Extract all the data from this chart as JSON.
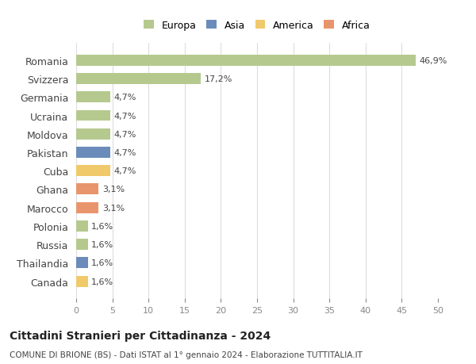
{
  "countries": [
    "Romania",
    "Svizzera",
    "Germania",
    "Ucraina",
    "Moldova",
    "Pakistan",
    "Cuba",
    "Ghana",
    "Marocco",
    "Polonia",
    "Russia",
    "Thailandia",
    "Canada"
  ],
  "values": [
    46.9,
    17.2,
    4.7,
    4.7,
    4.7,
    4.7,
    4.7,
    3.1,
    3.1,
    1.6,
    1.6,
    1.6,
    1.6
  ],
  "labels": [
    "46,9%",
    "17,2%",
    "4,7%",
    "4,7%",
    "4,7%",
    "4,7%",
    "4,7%",
    "3,1%",
    "3,1%",
    "1,6%",
    "1,6%",
    "1,6%",
    "1,6%"
  ],
  "bar_colors": [
    "#b5c98e",
    "#b5c98e",
    "#b5c98e",
    "#b5c98e",
    "#b5c98e",
    "#6b8cba",
    "#f0c96b",
    "#e8956d",
    "#e8956d",
    "#b5c98e",
    "#b5c98e",
    "#6b8cba",
    "#f0c96b"
  ],
  "legend_labels": [
    "Europa",
    "Asia",
    "America",
    "Africa"
  ],
  "legend_colors": [
    "#b5c98e",
    "#6b8cba",
    "#f0c96b",
    "#e8956d"
  ],
  "title": "Cittadini Stranieri per Cittadinanza - 2024",
  "subtitle": "COMUNE DI BRIONE (BS) - Dati ISTAT al 1° gennaio 2024 - Elaborazione TUTTITALIA.IT",
  "xlim": [
    0,
    50
  ],
  "xticks": [
    0,
    5,
    10,
    15,
    20,
    25,
    30,
    35,
    40,
    45,
    50
  ],
  "background_color": "#ffffff",
  "grid_color": "#dddddd",
  "bar_height": 0.6
}
